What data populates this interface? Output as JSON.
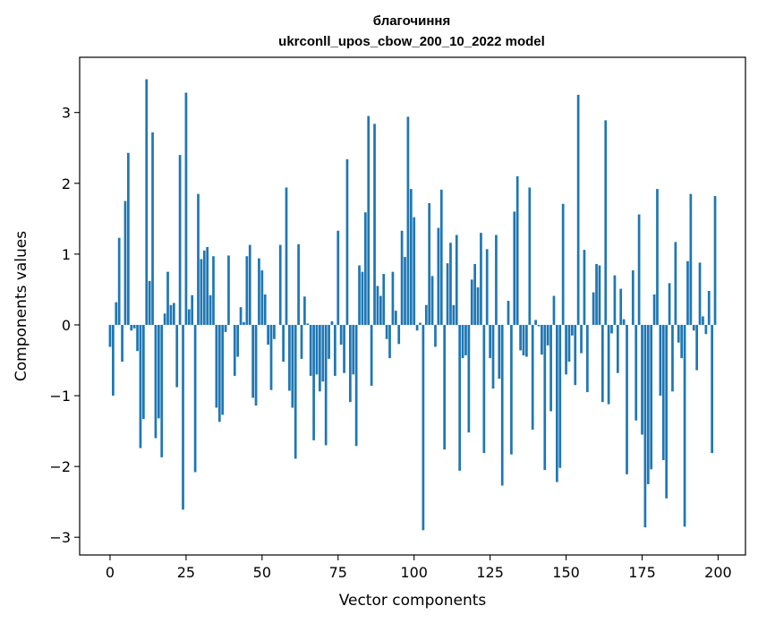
{
  "chart_data": {
    "type": "bar",
    "title_line1": "благочиння",
    "title_line2": "ukrconll_upos_cbow_200_10_2022 model",
    "xlabel": "Vector components",
    "ylabel": "Components values",
    "xlim": [
      -10,
      209
    ],
    "ylim": [
      -3.25,
      3.78
    ],
    "x_ticks": [
      0,
      25,
      50,
      75,
      100,
      125,
      150,
      175,
      200
    ],
    "x_tick_labels": [
      "0",
      "25",
      "50",
      "75",
      "100",
      "125",
      "150",
      "175",
      "200"
    ],
    "y_ticks": [
      -3,
      -2,
      -1,
      0,
      1,
      2,
      3
    ],
    "y_tick_labels": [
      "−3",
      "−2",
      "−1",
      "0",
      "1",
      "2",
      "3"
    ],
    "grid": false,
    "bar_color": "#1f77b4",
    "values": [
      -0.31,
      -1.0,
      0.32,
      1.23,
      -0.52,
      1.75,
      2.43,
      -0.08,
      -0.05,
      -0.37,
      -1.74,
      -1.33,
      3.47,
      0.62,
      2.72,
      -1.6,
      -1.32,
      -1.87,
      0.16,
      0.75,
      0.28,
      0.31,
      -0.88,
      2.4,
      -2.61,
      3.28,
      0.22,
      0.42,
      -2.08,
      1.85,
      0.93,
      1.05,
      1.1,
      0.42,
      0.97,
      -1.17,
      -1.37,
      -1.27,
      -0.1,
      0.98,
      0.0,
      -0.72,
      -0.45,
      0.25,
      0.04,
      0.97,
      1.13,
      -1.03,
      -1.14,
      0.94,
      0.77,
      0.43,
      -0.28,
      -0.92,
      -0.2,
      0.0,
      1.13,
      -0.52,
      1.94,
      -0.93,
      -1.17,
      -1.89,
      1.14,
      -0.48,
      0.4,
      0.02,
      -0.72,
      -1.63,
      -0.7,
      -0.94,
      -0.8,
      -1.7,
      -0.48,
      0.05,
      -0.72,
      1.33,
      -0.28,
      -0.68,
      2.34,
      -1.09,
      -0.7,
      -1.71,
      0.84,
      0.75,
      1.59,
      2.95,
      -0.86,
      2.84,
      0.55,
      0.41,
      0.72,
      -0.2,
      -0.47,
      0.75,
      0.2,
      -0.27,
      1.33,
      0.96,
      2.94,
      1.92,
      1.52,
      -0.08,
      0.03,
      -2.9,
      0.28,
      1.72,
      0.69,
      -0.31,
      1.37,
      1.91,
      -1.76,
      0.87,
      1.16,
      0.28,
      1.27,
      -2.06,
      -0.47,
      -0.43,
      -1.52,
      0.64,
      0.86,
      0.53,
      1.3,
      -1.81,
      1.07,
      -0.47,
      -0.9,
      1.27,
      -0.76,
      -2.27,
      0.0,
      0.34,
      -1.83,
      1.6,
      2.1,
      -0.36,
      -0.43,
      -0.45,
      1.94,
      -1.48,
      0.07,
      -0.02,
      -0.42,
      -2.05,
      -0.29,
      -1.22,
      0.41,
      -2.22,
      -2.02,
      1.71,
      -0.7,
      -0.52,
      -0.15,
      -0.85,
      3.25,
      -0.4,
      1.06,
      -0.95,
      0.0,
      0.46,
      0.86,
      0.84,
      -1.09,
      2.89,
      -1.12,
      -0.12,
      0.7,
      -0.68,
      0.51,
      0.08,
      -2.11,
      0.0,
      0.77,
      -1.35,
      1.56,
      -1.55,
      -2.86,
      -2.25,
      -2.04,
      0.43,
      1.92,
      -1.0,
      -1.91,
      -2.45,
      0.59,
      -0.94,
      1.17,
      -0.25,
      -0.47,
      -2.85,
      0.9,
      1.85,
      -0.08,
      -0.64,
      0.88,
      0.12,
      -0.13,
      0.48,
      -1.81,
      1.82
    ]
  }
}
